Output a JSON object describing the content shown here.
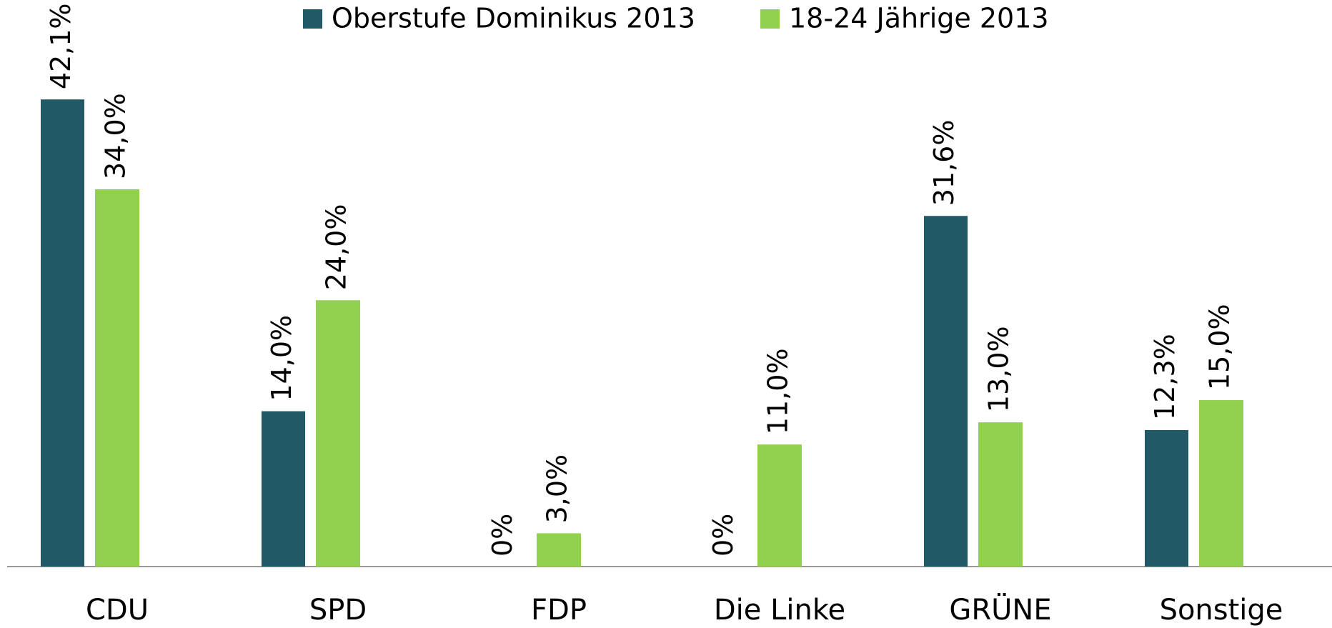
{
  "chart_data": {
    "type": "bar",
    "categories": [
      "CDU",
      "SPD",
      "FDP",
      "Die Linke",
      "GRÜNE",
      "Sonstige"
    ],
    "series": [
      {
        "name": "Oberstufe Dominikus 2013",
        "color": "#225966",
        "values": [
          42.1,
          14.0,
          0,
          0,
          31.6,
          12.3
        ],
        "value_labels": [
          "42,1%",
          "14,0%",
          "0%",
          "0%",
          "31,6%",
          "12,3%"
        ]
      },
      {
        "name": "18-24 Jährige 2013",
        "color": "#92d050",
        "values": [
          34.0,
          24.0,
          3.0,
          11.0,
          13.0,
          15.0
        ],
        "value_labels": [
          "34,0%",
          "24,0%",
          "3,0%",
          "11,0%",
          "13,0%",
          "15,0%"
        ]
      }
    ]
  }
}
